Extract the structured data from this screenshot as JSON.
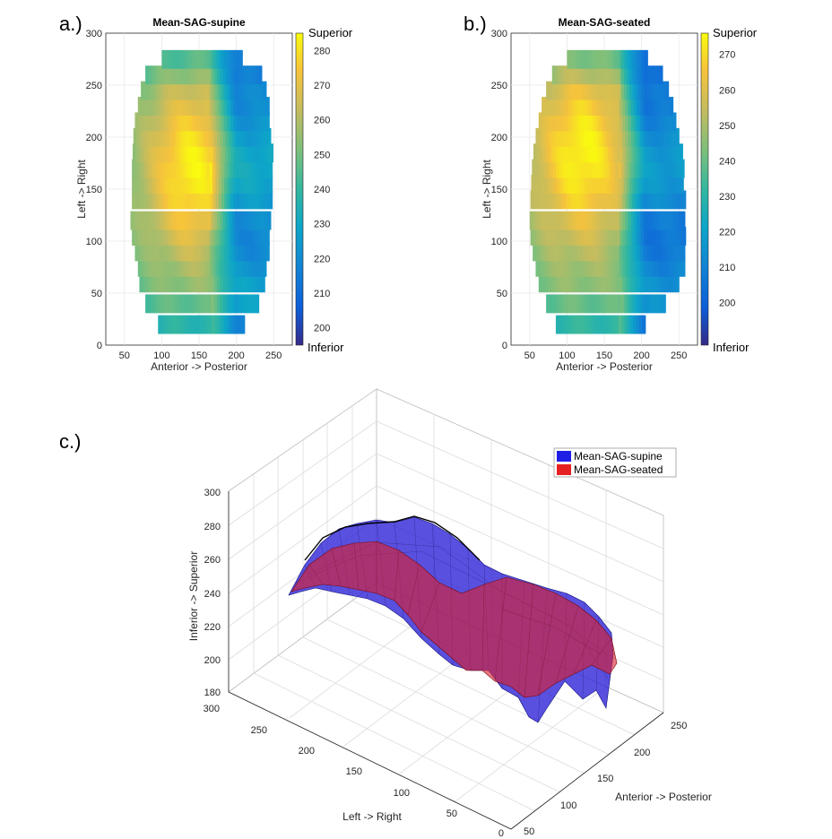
{
  "panels": {
    "a_label": "a.)",
    "b_label": "b.)",
    "c_label": "c.)"
  },
  "chart_data": [
    {
      "id": "a",
      "type": "heatmap",
      "title": "Mean-SAG-supine",
      "xlabel": "Anterior -> Posterior",
      "ylabel": "Left -> Right",
      "xlim": [
        25,
        275
      ],
      "ylim": [
        0,
        300
      ],
      "xticks": [
        "50",
        "100",
        "150",
        "200",
        "250"
      ],
      "yticks": [
        "0",
        "50",
        "100",
        "150",
        "200",
        "250",
        "300"
      ],
      "colorbar": {
        "range": [
          195,
          285
        ],
        "ticks": [
          "200",
          "210",
          "220",
          "230",
          "240",
          "250",
          "260",
          "270",
          "280"
        ],
        "top_label": "Superior",
        "bottom_label": "Inferior"
      },
      "rows_left_right": [
        20,
        40,
        60,
        75,
        90,
        105,
        120,
        140,
        155,
        170,
        185,
        200,
        215,
        230,
        245,
        260,
        275
      ],
      "row_extents_x": [
        [
          95,
          210
        ],
        [
          78,
          228
        ],
        [
          70,
          238
        ],
        [
          68,
          240
        ],
        [
          64,
          243
        ],
        [
          60,
          244
        ],
        [
          58,
          245
        ],
        [
          60,
          246
        ],
        [
          60,
          246
        ],
        [
          60,
          246
        ],
        [
          61,
          246
        ],
        [
          62,
          245
        ],
        [
          64,
          244
        ],
        [
          68,
          242
        ],
        [
          72,
          238
        ],
        [
          78,
          232
        ],
        [
          100,
          205
        ]
      ],
      "peak": {
        "x": 140,
        "y": 170,
        "value": 283
      },
      "ridge_x": 165,
      "posterior_value": 225,
      "edge_value": 245
    },
    {
      "id": "b",
      "type": "heatmap",
      "title": "Mean-SAG-seated",
      "xlabel": "Anterior -> Posterior",
      "ylabel": "Left -> Right",
      "xlim": [
        25,
        275
      ],
      "ylim": [
        0,
        300
      ],
      "xticks": [
        "50",
        "100",
        "150",
        "200",
        "250"
      ],
      "yticks": [
        "0",
        "50",
        "100",
        "150",
        "200",
        "250",
        "300"
      ],
      "colorbar": {
        "range": [
          188,
          276
        ],
        "ticks": [
          "200",
          "210",
          "220",
          "230",
          "240",
          "250",
          "260",
          "270"
        ],
        "top_label": "Superior",
        "bottom_label": "Inferior"
      },
      "rows_left_right": [
        20,
        40,
        60,
        75,
        90,
        105,
        120,
        140,
        155,
        170,
        185,
        200,
        215,
        230,
        245,
        260,
        275
      ],
      "row_extents_x": [
        [
          85,
          205
        ],
        [
          72,
          232
        ],
        [
          62,
          250
        ],
        [
          58,
          255
        ],
        [
          54,
          258
        ],
        [
          51,
          258
        ],
        [
          50,
          258
        ],
        [
          51,
          257
        ],
        [
          52,
          256
        ],
        [
          53,
          255
        ],
        [
          55,
          253
        ],
        [
          58,
          250
        ],
        [
          62,
          246
        ],
        [
          66,
          242
        ],
        [
          72,
          236
        ],
        [
          80,
          228
        ],
        [
          100,
          205
        ]
      ],
      "peak": {
        "x": 120,
        "y": 185,
        "value": 275
      },
      "ridge_x": 170,
      "posterior_value": 212,
      "edge_value": 240
    },
    {
      "id": "c",
      "type": "surface3d",
      "xlabel": "Anterior -> Posterior",
      "ylabel": "Left -> Right",
      "zlabel": "Inferior -> Superior",
      "xticks": [
        "50",
        "100",
        "150",
        "200",
        "250"
      ],
      "yticks": [
        "0",
        "50",
        "100",
        "150",
        "200",
        "250",
        "300"
      ],
      "zticks": [
        "180",
        "200",
        "220",
        "240",
        "260",
        "280",
        "300"
      ],
      "zlim": [
        180,
        300
      ],
      "legend": [
        {
          "name": "Mean-SAG-supine",
          "color": "#1f1fe6"
        },
        {
          "name": "Mean-SAG-seated",
          "color": "#e62020"
        }
      ]
    }
  ]
}
